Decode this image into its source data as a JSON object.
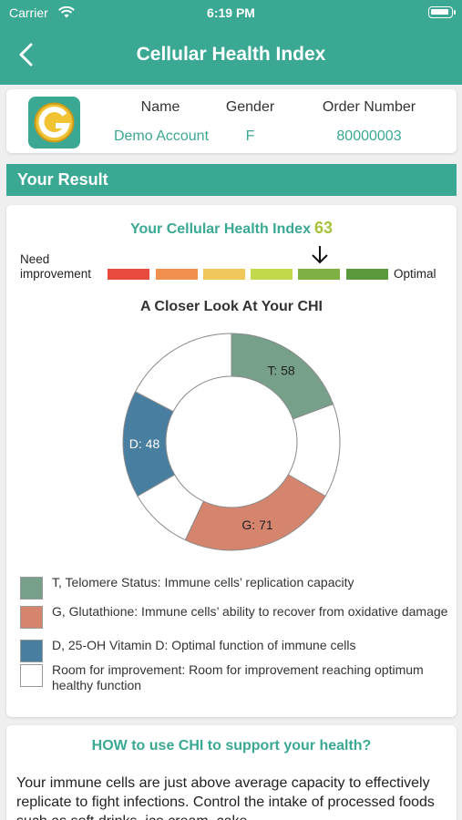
{
  "status_bar": {
    "carrier": "Carrier",
    "time": "6:19 PM"
  },
  "header": {
    "title": "Cellular Health Index"
  },
  "profile": {
    "name_label": "Name",
    "name_value": "Demo Account",
    "gender_label": "Gender",
    "gender_value": "F",
    "order_label": "Order Number",
    "order_value": "80000003"
  },
  "result_section": {
    "title": "Your Result"
  },
  "chi": {
    "title": "Your Cellular Health Index",
    "score": "63",
    "scale_left_label_1": "Need",
    "scale_left_label_2": "improvement",
    "scale_right_label": "Optimal",
    "scale_colors": [
      "#e84a3d",
      "#f0914f",
      "#f0c75a",
      "#c3d94c",
      "#7fb044",
      "#5a9a3c"
    ],
    "selected_segment": 4
  },
  "chart_data": {
    "type": "donut",
    "title": "A Closer Look At Your CHI",
    "segments": [
      {
        "key": "T",
        "label": "T: 58",
        "value": 58,
        "color": "#76a08a"
      },
      {
        "key": "T_room",
        "label": "",
        "value": 42,
        "color": "#ffffff"
      },
      {
        "key": "G",
        "label": "G: 71",
        "value": 71,
        "color": "#d5846e"
      },
      {
        "key": "G_room",
        "label": "",
        "value": 29,
        "color": "#ffffff"
      },
      {
        "key": "D",
        "label": "D: 48",
        "value": 48,
        "color": "#487e9f"
      },
      {
        "key": "D_room",
        "label": "",
        "value": 52,
        "color": "#ffffff"
      }
    ],
    "legend": [
      {
        "color": "#76a08a",
        "text": "T, Telomere Status: Immune cells’ replication capacity"
      },
      {
        "color": "#d5846e",
        "text": "G, Glutathione: Immune cells’ ability to recover from oxidative damage"
      },
      {
        "color": "#487e9f",
        "text": "D, 25-OH Vitamin D: Optimal function of immune cells"
      },
      {
        "color": "#ffffff",
        "text": "Room for improvement: Room for improvement reaching optimum healthy function"
      }
    ]
  },
  "how_section": {
    "title": "HOW to use CHI to support your health?",
    "body": "Your immune cells are just above average capacity to effectively replicate to fight infections. Control the intake of processed foods such as soft drinks, ice cream, cake"
  },
  "colors": {
    "accent": "#3aa893",
    "score": "#a6c43a"
  }
}
